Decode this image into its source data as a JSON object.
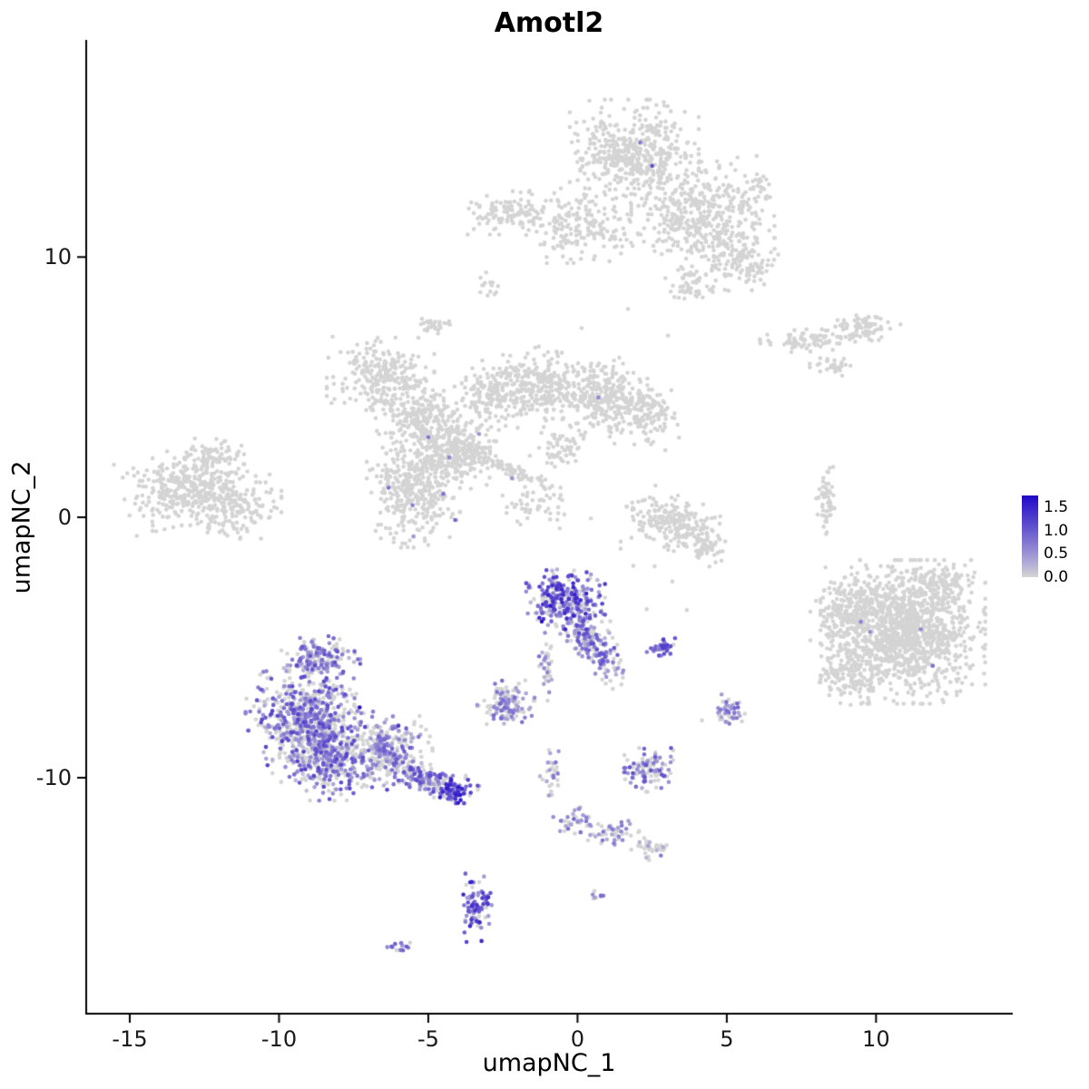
{
  "chart_data": {
    "type": "scatter",
    "title": "Amotl2",
    "xlabel": "umapNC_1",
    "ylabel": "umapNC_2",
    "xlim": [
      -16.46,
      14.55
    ],
    "ylim": [
      -19.06,
      18.3
    ],
    "x_ticks": [
      {
        "label": "-15",
        "value": -15
      },
      {
        "label": "-10",
        "value": -10
      },
      {
        "label": "-5",
        "value": -5
      },
      {
        "label": "0",
        "value": 0
      },
      {
        "label": "5",
        "value": 5
      },
      {
        "label": "10",
        "value": 10
      }
    ],
    "y_ticks": [
      {
        "label": "10",
        "value": 10
      },
      {
        "label": "0",
        "value": 0
      },
      {
        "label": "-10",
        "value": -10
      }
    ],
    "grid": false,
    "legend_position": "right",
    "legend": {
      "ticks": [
        {
          "label": "1.5",
          "value": 1.5
        },
        {
          "label": "1.0",
          "value": 1.0
        },
        {
          "label": "0.5",
          "value": 0.5
        },
        {
          "label": "0.0",
          "value": 0.0
        }
      ],
      "vmax": 1.75,
      "zero_color": "#D4D4D4",
      "low_color": "#D6D6D9",
      "high_color": "#2108C8"
    },
    "point_radius": 2.3,
    "seed": 7,
    "clusters": [
      {
        "name": "top-main",
        "cx": 1.9,
        "cy": 14.0,
        "sx": 0.9,
        "sy": 0.85,
        "n": 450,
        "f": 0,
        "lo": 0,
        "hi": 0
      },
      {
        "name": "top-right-lobe",
        "cx": 4.2,
        "cy": 11.6,
        "sx": 1.0,
        "sy": 0.95,
        "n": 450,
        "f": 0,
        "lo": 0,
        "hi": 0
      },
      {
        "name": "top-lower-lobe",
        "cx": 0.2,
        "cy": 11.2,
        "sx": 0.8,
        "sy": 0.6,
        "n": 180,
        "f": 0,
        "lo": 0,
        "hi": 0
      },
      {
        "name": "top-left-arm",
        "cx": -2.3,
        "cy": 11.7,
        "sx": 0.7,
        "sy": 0.35,
        "n": 120,
        "f": 0,
        "lo": 0,
        "hi": 0
      },
      {
        "name": "top-right-lower",
        "cx": 5.7,
        "cy": 9.8,
        "sx": 0.5,
        "sy": 0.45,
        "n": 90,
        "f": 0,
        "lo": 0,
        "hi": 0
      },
      {
        "name": "top-right-tip",
        "cx": 6.1,
        "cy": 12.5,
        "sx": 0.3,
        "sy": 0.3,
        "n": 25,
        "f": 0,
        "lo": 0,
        "hi": 0
      },
      {
        "name": "top-south-bits",
        "cx": 4.0,
        "cy": 8.9,
        "sx": 0.5,
        "sy": 0.3,
        "n": 50,
        "f": 0,
        "lo": 0,
        "hi": 0
      },
      {
        "name": "top-stray",
        "cx": -3.0,
        "cy": 9.0,
        "sx": 0.2,
        "sy": 0.2,
        "n": 15,
        "f": 0,
        "lo": 0,
        "hi": 0
      },
      {
        "name": "midleft-upper",
        "cx": -6.6,
        "cy": 5.5,
        "sx": 0.75,
        "sy": 0.6,
        "n": 240,
        "f": 0,
        "lo": 0,
        "hi": 0
      },
      {
        "name": "midleft-mid",
        "cx": -5.5,
        "cy": 4.0,
        "sx": 0.6,
        "sy": 0.55,
        "n": 170,
        "f": 0,
        "lo": 0,
        "hi": 0
      },
      {
        "name": "midleft-inner",
        "cx": -4.4,
        "cy": 3.0,
        "sx": 0.6,
        "sy": 0.7,
        "n": 200,
        "f": 0.006,
        "lo": 0.3,
        "hi": 0.8
      },
      {
        "name": "mid-west-lobe",
        "cx": -2.8,
        "cy": 4.8,
        "sx": 0.55,
        "sy": 0.6,
        "n": 180,
        "f": 0,
        "lo": 0,
        "hi": 0
      },
      {
        "name": "mid-center-lobe",
        "cx": -1.1,
        "cy": 5.0,
        "sx": 0.65,
        "sy": 0.65,
        "n": 240,
        "f": 0,
        "lo": 0,
        "hi": 0
      },
      {
        "name": "mid-east-lobe",
        "cx": 0.9,
        "cy": 4.7,
        "sx": 0.6,
        "sy": 0.6,
        "n": 240,
        "f": 0.004,
        "lo": 0.3,
        "hi": 0.8
      },
      {
        "name": "mid-far-east",
        "cx": 2.2,
        "cy": 4.0,
        "sx": 0.5,
        "sy": 0.5,
        "n": 140,
        "f": 0,
        "lo": 0,
        "hi": 0
      },
      {
        "name": "mid-lower-lobe",
        "cx": -5.5,
        "cy": 1.0,
        "sx": 0.65,
        "sy": 0.9,
        "n": 380,
        "f": 0.01,
        "lo": 0.3,
        "hi": 0.9
      },
      {
        "name": "mid-bridge",
        "cx": -3.7,
        "cy": 2.4,
        "sx": 0.5,
        "sy": 0.55,
        "n": 150,
        "f": 0.008,
        "lo": 0.3,
        "hi": 0.8
      },
      {
        "name": "mid-streak",
        "cx": -2.0,
        "cy": 1.7,
        "sx": 0.7,
        "sy": 0.12,
        "n": 70,
        "rot": -25,
        "f": 0,
        "lo": 0,
        "hi": 0
      },
      {
        "name": "mid-below",
        "cx": -1.4,
        "cy": 0.4,
        "sx": 0.5,
        "sy": 0.35,
        "n": 45,
        "f": 0,
        "lo": 0,
        "hi": 0
      },
      {
        "name": "mid-upper-bridge",
        "cx": -0.5,
        "cy": 2.8,
        "sx": 0.35,
        "sy": 0.4,
        "n": 60,
        "f": 0,
        "lo": 0,
        "hi": 0
      },
      {
        "name": "mid-nw-bit",
        "cx": -4.8,
        "cy": 7.4,
        "sx": 0.25,
        "sy": 0.18,
        "n": 30,
        "f": 0,
        "lo": 0,
        "hi": 0
      },
      {
        "name": "farleft-main",
        "cx": -13.2,
        "cy": 1.2,
        "sx": 0.85,
        "sy": 0.6,
        "n": 300,
        "rot": 15,
        "f": 0,
        "lo": 0,
        "hi": 0
      },
      {
        "name": "farleft-east",
        "cx": -11.6,
        "cy": 0.6,
        "sx": 0.7,
        "sy": 0.6,
        "n": 200,
        "f": 0,
        "lo": 0,
        "hi": 0
      },
      {
        "name": "farleft-top",
        "cx": -12.2,
        "cy": 2.4,
        "sx": 0.5,
        "sy": 0.3,
        "n": 60,
        "f": 0,
        "lo": 0,
        "hi": 0
      },
      {
        "name": "ne-stripe-1",
        "cx": 7.8,
        "cy": 6.8,
        "sx": 0.7,
        "sy": 0.18,
        "n": 80,
        "rot": 5,
        "f": 0,
        "lo": 0,
        "hi": 0
      },
      {
        "name": "ne-stripe-2",
        "cx": 9.6,
        "cy": 7.3,
        "sx": 0.5,
        "sy": 0.25,
        "n": 70,
        "rot": -10,
        "f": 0,
        "lo": 0,
        "hi": 0
      },
      {
        "name": "ne-stripe-3",
        "cx": 8.5,
        "cy": 5.8,
        "sx": 0.3,
        "sy": 0.15,
        "n": 30,
        "f": 0,
        "lo": 0,
        "hi": 0
      },
      {
        "name": "right-vstripe",
        "cx": 8.3,
        "cy": 0.5,
        "sx": 0.16,
        "sy": 0.6,
        "n": 55,
        "f": 0,
        "lo": 0,
        "hi": 0
      },
      {
        "name": "right-main",
        "cx": 10.9,
        "cy": -4.4,
        "sx": 1.15,
        "sy": 1.15,
        "n": 1250,
        "f": 0.0015,
        "lo": 0.4,
        "hi": 0.8
      },
      {
        "name": "right-west-fringe",
        "cx": 9.0,
        "cy": -3.6,
        "sx": 0.5,
        "sy": 0.7,
        "n": 150,
        "f": 0,
        "lo": 0,
        "hi": 0
      },
      {
        "name": "right-sw-fringe",
        "cx": 9.2,
        "cy": -6.0,
        "sx": 0.5,
        "sy": 0.5,
        "n": 120,
        "f": 0,
        "lo": 0,
        "hi": 0
      },
      {
        "name": "right-ne-fringe",
        "cx": 12.3,
        "cy": -2.6,
        "sx": 0.5,
        "sy": 0.4,
        "n": 100,
        "f": 0,
        "lo": 0,
        "hi": 0
      },
      {
        "name": "crescent-a",
        "cx": 2.6,
        "cy": 0.0,
        "sx": 0.45,
        "sy": 0.35,
        "n": 90,
        "f": 0,
        "lo": 0,
        "hi": 0
      },
      {
        "name": "crescent-b",
        "cx": 3.6,
        "cy": -0.4,
        "sx": 0.5,
        "sy": 0.4,
        "n": 110,
        "f": 0,
        "lo": 0,
        "hi": 0
      },
      {
        "name": "crescent-c",
        "cx": 4.3,
        "cy": -1.1,
        "sx": 0.3,
        "sy": 0.3,
        "n": 60,
        "f": 0,
        "lo": 0,
        "hi": 0
      },
      {
        "name": "center-expr-main",
        "cx": -0.4,
        "cy": -3.1,
        "sx": 0.55,
        "sy": 0.5,
        "n": 260,
        "f": 0.7,
        "lo": 0.2,
        "hi": 1.5
      },
      {
        "name": "center-expr-tail",
        "cx": 0.5,
        "cy": -4.9,
        "sx": 0.75,
        "sy": 0.3,
        "n": 200,
        "rot": -60,
        "f": 0.55,
        "lo": 0.2,
        "hi": 1.2
      },
      {
        "name": "center-stem",
        "cx": -1.0,
        "cy": -5.6,
        "sx": 0.12,
        "sy": 0.6,
        "n": 35,
        "f": 0.35,
        "lo": 0.2,
        "hi": 0.8
      },
      {
        "name": "small-expr-right",
        "cx": 2.85,
        "cy": -5.0,
        "sx": 0.22,
        "sy": 0.15,
        "n": 40,
        "f": 0.8,
        "lo": 0.4,
        "hi": 1.3
      },
      {
        "name": "small-mid-left",
        "cx": -2.4,
        "cy": -7.1,
        "sx": 0.4,
        "sy": 0.35,
        "n": 130,
        "f": 0.45,
        "lo": 0.2,
        "hi": 0.9
      },
      {
        "name": "bl-top-bump",
        "cx": -8.6,
        "cy": -5.4,
        "sx": 0.55,
        "sy": 0.35,
        "n": 160,
        "f": 0.6,
        "lo": 0.2,
        "hi": 1.1
      },
      {
        "name": "bl-main-upper",
        "cx": -9.2,
        "cy": -7.6,
        "sx": 0.8,
        "sy": 0.8,
        "n": 550,
        "f": 0.55,
        "lo": 0.15,
        "hi": 1.2
      },
      {
        "name": "bl-main-lower",
        "cx": -8.3,
        "cy": -9.2,
        "sx": 0.8,
        "sy": 0.7,
        "n": 450,
        "f": 0.5,
        "lo": 0.15,
        "hi": 1.2
      },
      {
        "name": "bl-east",
        "cx": -6.3,
        "cy": -8.9,
        "sx": 0.6,
        "sy": 0.6,
        "n": 260,
        "f": 0.45,
        "lo": 0.15,
        "hi": 1.0
      },
      {
        "name": "bl-tail",
        "cx": -5.0,
        "cy": -10.1,
        "sx": 0.7,
        "sy": 0.25,
        "n": 170,
        "rot": -20,
        "f": 0.55,
        "lo": 0.2,
        "hi": 1.2
      },
      {
        "name": "bl-tail-tip",
        "cx": -4.15,
        "cy": -10.5,
        "sx": 0.25,
        "sy": 0.2,
        "n": 55,
        "f": 0.9,
        "lo": 0.5,
        "hi": 1.6
      },
      {
        "name": "small-se",
        "cx": 5.1,
        "cy": -7.4,
        "sx": 0.22,
        "sy": 0.25,
        "n": 45,
        "f": 0.5,
        "lo": 0.3,
        "hi": 1.0
      },
      {
        "name": "small-south-mid",
        "cx": 2.3,
        "cy": -9.7,
        "sx": 0.4,
        "sy": 0.35,
        "n": 110,
        "f": 0.55,
        "lo": 0.2,
        "hi": 1.1
      },
      {
        "name": "bits-south",
        "cx": -0.85,
        "cy": -9.9,
        "sx": 0.18,
        "sy": 0.4,
        "n": 30,
        "f": 0.35,
        "lo": 0.2,
        "hi": 0.8
      },
      {
        "name": "chain-a",
        "cx": -0.1,
        "cy": -11.7,
        "sx": 0.35,
        "sy": 0.25,
        "n": 40,
        "f": 0.4,
        "lo": 0.2,
        "hi": 0.9
      },
      {
        "name": "chain-b",
        "cx": 1.2,
        "cy": -12.1,
        "sx": 0.4,
        "sy": 0.2,
        "n": 45,
        "f": 0.35,
        "lo": 0.2,
        "hi": 0.8
      },
      {
        "name": "chain-c",
        "cx": 2.4,
        "cy": -12.7,
        "sx": 0.25,
        "sy": 0.2,
        "n": 35,
        "f": 0.3,
        "lo": 0.2,
        "hi": 0.8
      },
      {
        "name": "bottom-expr",
        "cx": -3.4,
        "cy": -15.0,
        "sx": 0.22,
        "sy": 0.55,
        "n": 85,
        "f": 0.85,
        "lo": 0.4,
        "hi": 1.5
      },
      {
        "name": "tiny-sw",
        "cx": -6.0,
        "cy": -16.5,
        "sx": 0.2,
        "sy": 0.1,
        "n": 12,
        "f": 0.75,
        "lo": 0.4,
        "hi": 1.0
      },
      {
        "name": "tiny-bottom-mid",
        "cx": 0.7,
        "cy": -14.5,
        "sx": 0.12,
        "sy": 0.15,
        "n": 8,
        "f": 0.7,
        "lo": 0.4,
        "hi": 1.0
      },
      {
        "name": "stray-upper",
        "cx": 1.5,
        "cy": 2.0,
        "sx": 3.5,
        "sy": 2.5,
        "n": 18,
        "f": 0,
        "lo": 0,
        "hi": 0
      },
      {
        "name": "stray-lower",
        "cx": 3.0,
        "cy": -3.0,
        "sx": 2.5,
        "sy": 2.0,
        "n": 12,
        "f": 0,
        "lo": 0,
        "hi": 0
      }
    ],
    "highlight_points": [
      {
        "x": 2.1,
        "y": 14.4,
        "v": 0.7
      },
      {
        "x": 2.5,
        "y": 13.5,
        "v": 1.1
      },
      {
        "x": -4.3,
        "y": 2.3,
        "v": 0.6
      },
      {
        "x": -4.5,
        "y": 0.9,
        "v": 0.8
      },
      {
        "x": -3.3,
        "y": 3.2,
        "v": 0.5
      },
      {
        "x": -4.1,
        "y": -0.1,
        "v": 0.9
      },
      {
        "x": -2.2,
        "y": 1.5,
        "v": 0.5
      },
      {
        "x": 0.7,
        "y": 4.6,
        "v": 0.6
      },
      {
        "x": 9.8,
        "y": -4.4,
        "v": 0.55
      },
      {
        "x": 11.5,
        "y": -4.3,
        "v": 0.6
      },
      {
        "x": 11.9,
        "y": -5.7,
        "v": 0.8
      },
      {
        "x": -1.2,
        "y": -4.0,
        "v": 1.7
      },
      {
        "x": -0.9,
        "y": -3.4,
        "v": 1.6
      },
      {
        "x": -7.3,
        "y": -7.3,
        "v": 1.7
      },
      {
        "x": -6.0,
        "y": -8.0,
        "v": 1.3
      },
      {
        "x": -9.9,
        "y": -8.6,
        "v": 1.2
      },
      {
        "x": -4.4,
        "y": -10.4,
        "v": 1.5
      },
      {
        "x": -3.55,
        "y": -14.0,
        "v": 1.5
      },
      {
        "x": 3.0,
        "y": -4.9,
        "v": 1.2
      }
    ]
  }
}
